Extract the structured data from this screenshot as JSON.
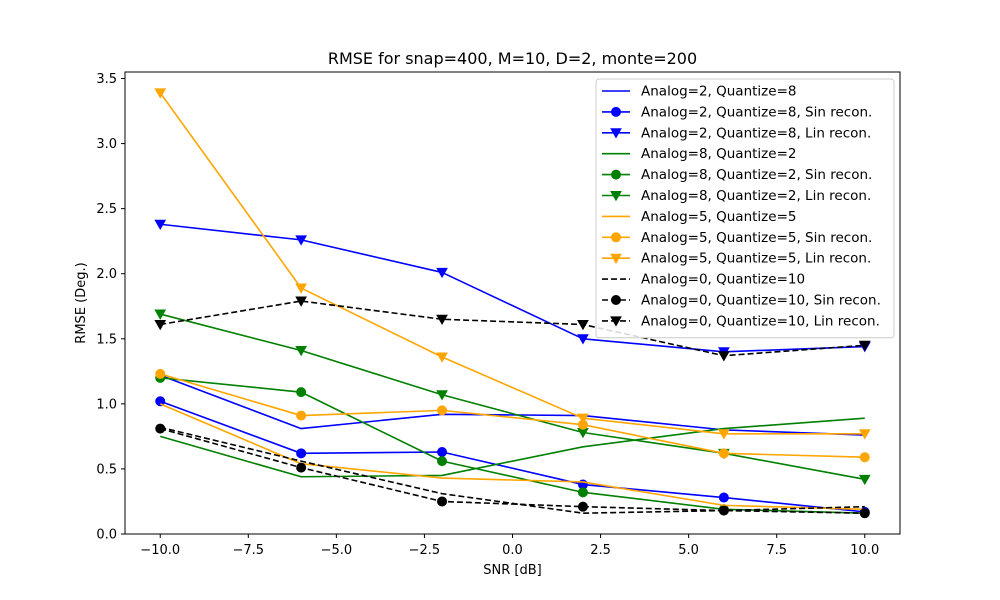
{
  "chart_data": {
    "type": "line",
    "title": "RMSE for snap=400, M=10, D=2, monte=200",
    "xlabel": "SNR [dB]",
    "ylabel": "RMSE (Deg.)",
    "xlim": [
      -11,
      11
    ],
    "ylim": [
      0,
      3.55
    ],
    "xticks": [
      -10,
      -7.5,
      -5,
      -2.5,
      0,
      2.5,
      5,
      7.5,
      10
    ],
    "xtick_labels": [
      "−10.0",
      "−7.5",
      "−5.0",
      "−2.5",
      "0.0",
      "2.5",
      "5.0",
      "7.5",
      "10.0"
    ],
    "yticks": [
      0,
      0.5,
      1,
      1.5,
      2,
      2.5,
      3,
      3.5
    ],
    "ytick_labels": [
      "0.0",
      "0.5",
      "1.0",
      "1.5",
      "2.0",
      "2.5",
      "3.0",
      "3.5"
    ],
    "grid": false,
    "legend_position": "top-right",
    "x": [
      -10,
      -6,
      -2,
      2,
      6,
      10
    ],
    "series": [
      {
        "name": "Analog=2, Quantize=8",
        "color": "#0000ff",
        "dash": "solid",
        "marker": "none",
        "values": [
          1.22,
          0.81,
          0.92,
          0.91,
          0.8,
          0.76
        ]
      },
      {
        "name": "Analog=2, Quantize=8, Sin recon.",
        "color": "#0000ff",
        "dash": "solid",
        "marker": "circle",
        "values": [
          1.02,
          0.62,
          0.63,
          0.38,
          0.28,
          0.17
        ]
      },
      {
        "name": "Analog=2, Quantize=8, Lin recon.",
        "color": "#0000ff",
        "dash": "solid",
        "marker": "triangle-down",
        "values": [
          2.38,
          2.26,
          2.01,
          1.5,
          1.4,
          1.44
        ]
      },
      {
        "name": "Analog=8, Quantize=2",
        "color": "#008000",
        "dash": "solid",
        "marker": "none",
        "values": [
          0.75,
          0.44,
          0.45,
          0.67,
          0.81,
          0.89
        ]
      },
      {
        "name": "Analog=8, Quantize=2, Sin recon.",
        "color": "#008000",
        "dash": "solid",
        "marker": "circle",
        "values": [
          1.2,
          1.09,
          0.56,
          0.32,
          0.19,
          0.16
        ]
      },
      {
        "name": "Analog=8, Quantize=2, Lin recon.",
        "color": "#008000",
        "dash": "solid",
        "marker": "triangle-down",
        "values": [
          1.69,
          1.41,
          1.07,
          0.78,
          0.62,
          0.42
        ]
      },
      {
        "name": "Analog=5, Quantize=5",
        "color": "#ffa500",
        "dash": "solid",
        "marker": "none",
        "values": [
          1.0,
          0.54,
          0.43,
          0.4,
          0.22,
          0.19
        ]
      },
      {
        "name": "Analog=5, Quantize=5, Sin recon.",
        "color": "#ffa500",
        "dash": "solid",
        "marker": "circle",
        "values": [
          1.23,
          0.91,
          0.95,
          0.84,
          0.62,
          0.59
        ]
      },
      {
        "name": "Analog=5, Quantize=5, Lin recon.",
        "color": "#ffa500",
        "dash": "solid",
        "marker": "triangle-down",
        "values": [
          3.39,
          1.89,
          1.36,
          0.89,
          0.77,
          0.77
        ]
      },
      {
        "name": "Analog=0, Quantize=10",
        "color": "#000000",
        "dash": "dashed",
        "marker": "none",
        "values": [
          0.82,
          0.56,
          0.31,
          0.16,
          0.18,
          0.21
        ]
      },
      {
        "name": "Analog=0, Quantize=10, Sin recon.",
        "color": "#000000",
        "dash": "dashed",
        "marker": "circle",
        "values": [
          0.81,
          0.51,
          0.25,
          0.21,
          0.18,
          0.16
        ]
      },
      {
        "name": "Analog=0, Quantize=10, Lin recon.",
        "color": "#000000",
        "dash": "dashed",
        "marker": "triangle-down",
        "values": [
          1.61,
          1.79,
          1.65,
          1.61,
          1.37,
          1.45
        ]
      }
    ]
  }
}
